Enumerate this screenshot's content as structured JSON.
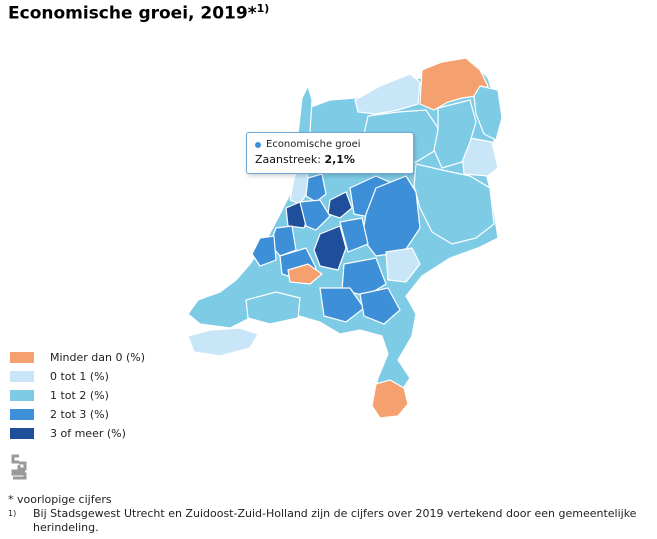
{
  "title": {
    "text": "Economische groei, 2019*",
    "superscript": "1)"
  },
  "legend": [
    {
      "label": "Minder dan 0 (%)",
      "color": "#f4a06f"
    },
    {
      "label": "0 tot 1 (%)",
      "color": "#c9e6f8"
    },
    {
      "label": "1 tot 2 (%)",
      "color": "#7ecbe6"
    },
    {
      "label": "2 tot 3 (%)",
      "color": "#3d8fd8"
    },
    {
      "label": "3 of meer (%)",
      "color": "#1f4e9a"
    }
  ],
  "tooltip": {
    "series_label": "Economische groei",
    "region": "Zaanstreek:",
    "value": "2,1%",
    "dot_color": "#3d8fd8"
  },
  "logo": {
    "icon": "cbs-logo-icon"
  },
  "footnotes": {
    "asterisk_note": "* voorlopige cijfers",
    "note1_mark": "1)",
    "note1_text": "Bij Stadsgewest Utrecht en Zuidoost-Zuid-Holland zijn de cijfers over 2019 vertekend door een gemeentelijke herindeling."
  }
}
